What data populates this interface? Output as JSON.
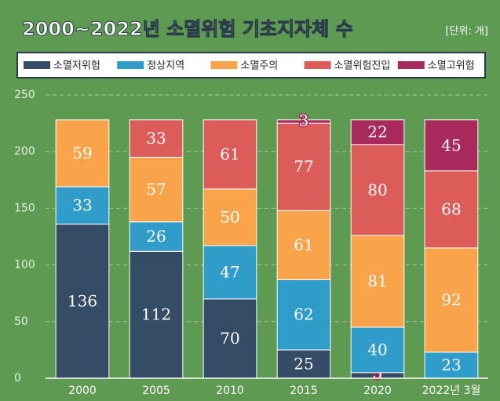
{
  "chart_data": {
    "type": "stacked_bar",
    "title": "2000~2022년 소멸위험 기초지자체 수",
    "unit": "[단위: 개]",
    "categories": [
      "2000",
      "2005",
      "2010",
      "2015",
      "2020",
      "2022년 3월"
    ],
    "series": [
      {
        "name": "소멸저위험",
        "color": "#344c66",
        "values": [
          136,
          112,
          70,
          25,
          5,
          null
        ]
      },
      {
        "name": "정상지역",
        "color": "#2f9cc9",
        "values": [
          33,
          26,
          47,
          62,
          40,
          23
        ]
      },
      {
        "name": "소멸주의",
        "color": "#f9a44b",
        "values": [
          59,
          57,
          50,
          61,
          81,
          92
        ]
      },
      {
        "name": "소멸위험진입",
        "color": "#dc5c5a",
        "values": [
          null,
          33,
          61,
          77,
          80,
          68
        ]
      },
      {
        "name": "소멸고위험",
        "color": "#a82a5c",
        "values": [
          null,
          null,
          null,
          3,
          22,
          45
        ]
      }
    ],
    "ylim": [
      0,
      250
    ],
    "yticks": [
      0,
      50,
      100,
      150,
      200,
      250
    ],
    "grid": true
  }
}
